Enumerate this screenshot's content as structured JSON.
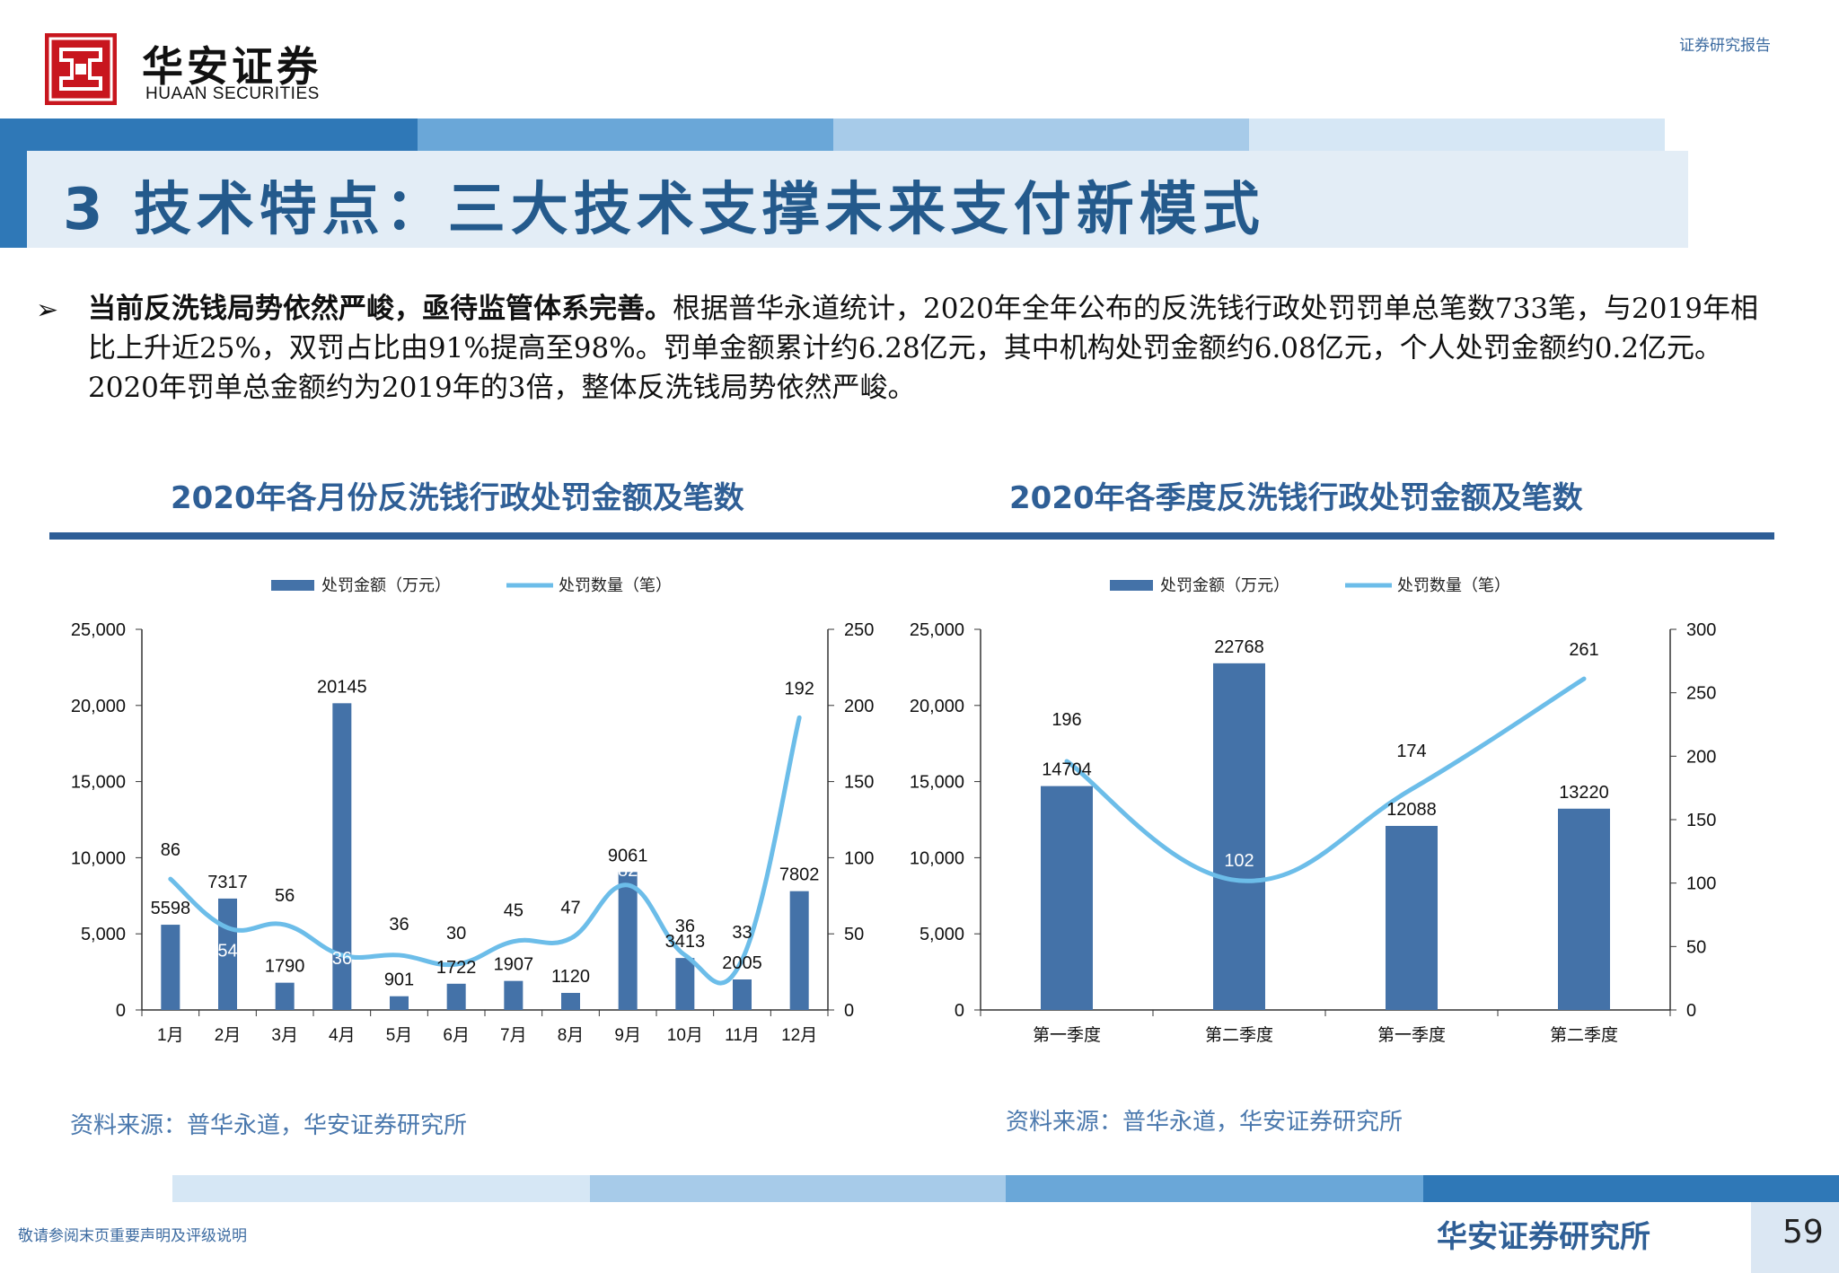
{
  "header": {
    "logo_cn": "华安证券",
    "logo_en": "HUAAN SECURITIES",
    "report_type": "证券研究报告"
  },
  "title": "3 技术特点：三大技术支撑未来支付新模式",
  "bullet": "➢",
  "paragraph": {
    "lead": "当前反洗钱局势依然严峻，亟待监管体系完善。",
    "text": "根据普华永道统计，2020年全年公布的反洗钱行政处罚罚单总笔数733笔，与2019年相比上升近25%，双罚占比由91%提高至98%。罚单金额累计约6.28亿元，其中机构处罚金额约6.08亿元，个人处罚金额约0.2亿元。2020年罚单总金额约为2019年的3倍，整体反洗钱局势依然严峻。"
  },
  "chart_titles": {
    "left": "2020年各月份反洗钱行政处罚金额及笔数",
    "right": "2020年各季度反洗钱行政处罚金额及笔数"
  },
  "sources": {
    "left": "资料来源：普华永道，华安证券研究所",
    "right": "资料来源：普华永道，华安证券研究所"
  },
  "colors": {
    "bar": "#4472a8",
    "line": "#6cbde9",
    "accent": "#2e5e97",
    "logo_red": "#c8161e"
  },
  "chart_data": [
    {
      "type": "bar+line",
      "categories": [
        "1月",
        "2月",
        "3月",
        "4月",
        "5月",
        "6月",
        "7月",
        "8月",
        "9月",
        "10月",
        "11月",
        "12月"
      ],
      "series": [
        {
          "name": "处罚金额（万元）",
          "type": "bar",
          "axis": "left",
          "values": [
            5598,
            7317,
            1790,
            20145,
            901,
            1722,
            1907,
            1120,
            9061,
            3413,
            2005,
            7802
          ]
        },
        {
          "name": "处罚数量（笔）",
          "type": "line",
          "axis": "right",
          "values": [
            86,
            54,
            56,
            36,
            36,
            30,
            45,
            47,
            82,
            36,
            33,
            192
          ]
        }
      ],
      "y_left": {
        "range": [
          0,
          25000
        ],
        "ticks": [
          "0",
          "5,000",
          "10,000",
          "15,000",
          "20,000",
          "25,000"
        ]
      },
      "y_right": {
        "range": [
          0,
          250
        ],
        "ticks": [
          "0",
          "50",
          "100",
          "150",
          "200",
          "250"
        ]
      },
      "legend": "top",
      "grid": false
    },
    {
      "type": "bar+line",
      "categories": [
        "第一季度",
        "第二季度",
        "第一季度",
        "第二季度"
      ],
      "series": [
        {
          "name": "处罚金额（万元）",
          "type": "bar",
          "axis": "left",
          "values": [
            14704,
            22768,
            12088,
            13220
          ]
        },
        {
          "name": "处罚数量（笔）",
          "type": "line",
          "axis": "right",
          "values": [
            196,
            102,
            174,
            261
          ]
        }
      ],
      "y_left": {
        "range": [
          0,
          25000
        ],
        "ticks": [
          "0",
          "5,000",
          "10,000",
          "15,000",
          "20,000",
          "25,000"
        ]
      },
      "y_right": {
        "range": [
          0,
          300
        ],
        "ticks": [
          "0",
          "50",
          "100",
          "150",
          "200",
          "250",
          "300"
        ]
      },
      "legend": "top",
      "grid": false
    }
  ],
  "footer": {
    "disclaimer": "敬请参阅末页重要声明及评级说明",
    "brand": "华安证券研究所",
    "page_number": "59"
  }
}
